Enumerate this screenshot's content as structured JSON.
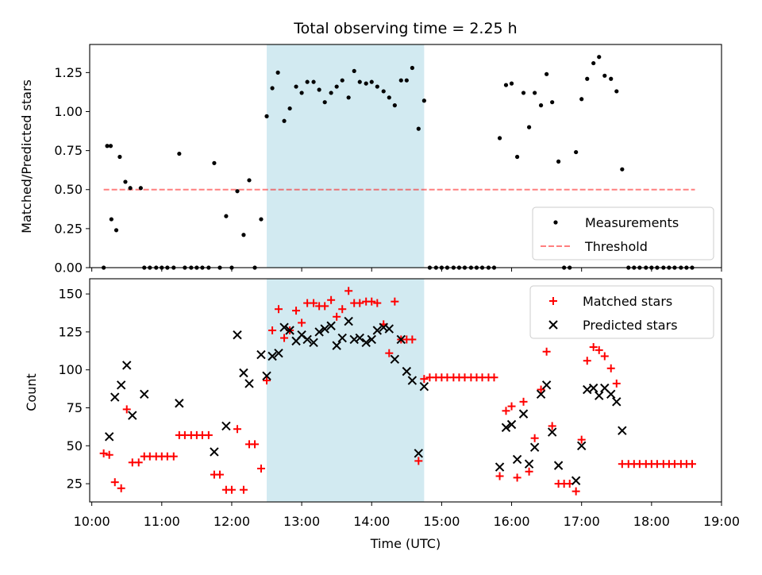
{
  "chart_data": {
    "title": "Total observing time = 2.25 h",
    "xlabel": "Time (UTC)",
    "x_tick_labels": [
      "10:00",
      "11:00",
      "12:00",
      "13:00",
      "14:00",
      "15:00",
      "16:00",
      "17:00",
      "18:00",
      "19:00"
    ],
    "x_ticks_hours": [
      10,
      11,
      12,
      13,
      14,
      15,
      16,
      17,
      18,
      19
    ],
    "xlim_hours": [
      9.97,
      19.0
    ],
    "highlight_span_hours": [
      12.5,
      14.75
    ],
    "colors": {
      "highlight": "#add8e6",
      "measurements": "#000000",
      "threshold": "#ff0000",
      "matched": "#ff0000",
      "predicted": "#000000"
    },
    "panels": [
      {
        "type": "scatter",
        "ylabel": "Matched/Predicted stars",
        "ylim": [
          0,
          1.43
        ],
        "y_ticks": [
          0.0,
          0.25,
          0.5,
          0.75,
          1.0,
          1.25
        ],
        "y_tick_labels": [
          "0.00",
          "0.25",
          "0.50",
          "0.75",
          "1.00",
          "1.25"
        ],
        "legend": {
          "position": "lower-right",
          "entries": [
            "Measurements",
            "Threshold"
          ]
        },
        "threshold": {
          "name": "Threshold",
          "value": 0.5,
          "x_range_hours": [
            10.17,
            18.62
          ]
        },
        "series": [
          {
            "name": "Measurements",
            "marker": "dot",
            "x": [
              10.22,
              10.28,
              10.35,
              10.4,
              10.48,
              10.55,
              10.7,
              10.27,
              11.25,
              11.75,
              11.92,
              12.08,
              12.17,
              12.25,
              12.42,
              12.5,
              12.58,
              12.66,
              12.75,
              12.83,
              12.92,
              13.0,
              13.08,
              13.17,
              13.25,
              13.33,
              13.42,
              13.5,
              13.58,
              13.67,
              13.75,
              13.83,
              13.92,
              14.0,
              14.08,
              14.17,
              14.25,
              14.33,
              14.42,
              14.5,
              14.58,
              14.67,
              14.75,
              15.83,
              15.92,
              16.0,
              16.08,
              16.17,
              16.25,
              16.33,
              16.42,
              16.5,
              16.58,
              16.67,
              16.92,
              17.0,
              17.08,
              17.17,
              17.25,
              17.33,
              17.42,
              17.5,
              17.58,
              10.17,
              10.75,
              10.83,
              10.92,
              11.0,
              11.08,
              11.17,
              11.33,
              11.42,
              11.5,
              11.58,
              11.67,
              11.83,
              12.0,
              12.33,
              14.83,
              14.92,
              15.0,
              15.08,
              15.17,
              15.25,
              15.33,
              15.42,
              15.5,
              15.58,
              15.67,
              15.75,
              16.75,
              16.83,
              17.67,
              17.75,
              17.83,
              17.92,
              18.0,
              18.08,
              18.17,
              18.25,
              18.33,
              18.42,
              18.5,
              18.58
            ],
            "y": [
              0.78,
              0.31,
              0.24,
              0.71,
              0.55,
              0.51,
              0.51,
              0.78,
              0.73,
              0.67,
              0.33,
              0.49,
              0.21,
              0.56,
              0.31,
              0.97,
              1.15,
              1.25,
              0.94,
              1.02,
              1.16,
              1.12,
              1.19,
              1.19,
              1.14,
              1.06,
              1.12,
              1.16,
              1.2,
              1.09,
              1.26,
              1.19,
              1.18,
              1.19,
              1.16,
              1.13,
              1.09,
              1.04,
              1.2,
              1.2,
              1.28,
              0.89,
              1.07,
              0.83,
              1.17,
              1.18,
              0.71,
              1.12,
              0.9,
              1.12,
              1.04,
              1.24,
              1.06,
              0.68,
              0.74,
              1.08,
              1.21,
              1.31,
              1.35,
              1.23,
              1.21,
              1.13,
              0.63,
              0,
              0,
              0,
              0,
              0,
              0,
              0,
              0,
              0,
              0,
              0,
              0,
              0,
              0,
              0,
              0,
              0,
              0,
              0,
              0,
              0,
              0,
              0,
              0,
              0,
              0,
              0,
              0,
              0,
              0,
              0,
              0,
              0,
              0,
              0,
              0,
              0,
              0,
              0,
              0,
              0
            ]
          }
        ]
      },
      {
        "type": "scatter",
        "ylabel": "Count",
        "ylim": [
          13,
          160
        ],
        "y_ticks": [
          25,
          50,
          75,
          100,
          125,
          150
        ],
        "y_tick_labels": [
          "25",
          "50",
          "75",
          "100",
          "125",
          "150"
        ],
        "legend": {
          "position": "upper-right",
          "entries": [
            "Matched stars",
            "Predicted stars"
          ]
        },
        "series": [
          {
            "name": "Matched stars",
            "marker": "plus",
            "x": [
              10.17,
              10.25,
              10.33,
              10.42,
              10.5,
              10.58,
              10.67,
              10.75,
              10.83,
              10.92,
              11.0,
              11.08,
              11.17,
              11.25,
              11.33,
              11.42,
              11.5,
              11.58,
              11.67,
              11.75,
              11.83,
              11.92,
              12.0,
              12.08,
              12.17,
              12.25,
              12.33,
              12.42,
              12.5,
              12.58,
              12.67,
              12.75,
              12.83,
              12.92,
              13.0,
              13.08,
              13.17,
              13.25,
              13.33,
              13.42,
              13.5,
              13.58,
              13.67,
              13.75,
              13.83,
              13.92,
              14.0,
              14.08,
              14.17,
              14.25,
              14.33,
              14.42,
              14.5,
              14.58,
              14.67,
              14.75,
              14.83,
              14.92,
              15.0,
              15.08,
              15.17,
              15.25,
              15.33,
              15.42,
              15.5,
              15.58,
              15.67,
              15.75,
              15.83,
              15.92,
              16.0,
              16.08,
              16.17,
              16.25,
              16.33,
              16.42,
              16.5,
              16.58,
              16.67,
              16.75,
              16.83,
              16.92,
              17.0,
              17.08,
              17.17,
              17.25,
              17.33,
              17.42,
              17.5,
              17.58,
              17.67,
              17.75,
              17.83,
              17.92,
              18.0,
              18.08,
              18.17,
              18.25,
              18.33,
              18.42,
              18.5,
              18.58
            ],
            "y": [
              45,
              44,
              26,
              22,
              74,
              39,
              39,
              43,
              43,
              43,
              43,
              43,
              43,
              57,
              57,
              57,
              57,
              57,
              57,
              31,
              31,
              21,
              21,
              61,
              21,
              51,
              51,
              35,
              93,
              126,
              140,
              121,
              126,
              139,
              131,
              144,
              144,
              142,
              142,
              146,
              135,
              140,
              152,
              144,
              144,
              145,
              145,
              144,
              130,
              111,
              145,
              120,
              120,
              120,
              40,
              94,
              95,
              95,
              95,
              95,
              95,
              95,
              95,
              95,
              95,
              95,
              95,
              95,
              30,
              73,
              76,
              29,
              79,
              33,
              55,
              87,
              112,
              63,
              25,
              25,
              25,
              20,
              54,
              106,
              115,
              113,
              109,
              101,
              91,
              38,
              38,
              38,
              38,
              38,
              38,
              38,
              38,
              38,
              38,
              38,
              38,
              38
            ]
          },
          {
            "name": "Predicted stars",
            "marker": "x",
            "x": [
              10.25,
              10.33,
              10.42,
              10.5,
              10.58,
              10.75,
              11.25,
              11.75,
              11.92,
              12.08,
              12.17,
              12.25,
              12.42,
              12.5,
              12.58,
              12.67,
              12.75,
              12.83,
              12.92,
              13.0,
              13.08,
              13.17,
              13.25,
              13.33,
              13.42,
              13.5,
              13.58,
              13.67,
              13.75,
              13.83,
              13.92,
              14.0,
              14.08,
              14.17,
              14.25,
              14.33,
              14.42,
              14.5,
              14.58,
              14.67,
              14.75,
              15.83,
              15.92,
              16.0,
              16.08,
              16.17,
              16.25,
              16.33,
              16.42,
              16.5,
              16.58,
              16.67,
              16.92,
              17.0,
              17.08,
              17.17,
              17.25,
              17.33,
              17.42,
              17.5,
              17.58
            ],
            "y": [
              56,
              82,
              90,
              103,
              70,
              84,
              78,
              46,
              63,
              123,
              98,
              91,
              110,
              96,
              109,
              111,
              128,
              126,
              119,
              123,
              120,
              118,
              125,
              127,
              129,
              116,
              121,
              132,
              120,
              121,
              118,
              120,
              126,
              128,
              127,
              107,
              120,
              99,
              93,
              45,
              89,
              36,
              62,
              64,
              41,
              71,
              38,
              49,
              84,
              90,
              59,
              37,
              27,
              50,
              87,
              88,
              83,
              88,
              84,
              79,
              60
            ]
          }
        ]
      }
    ]
  }
}
